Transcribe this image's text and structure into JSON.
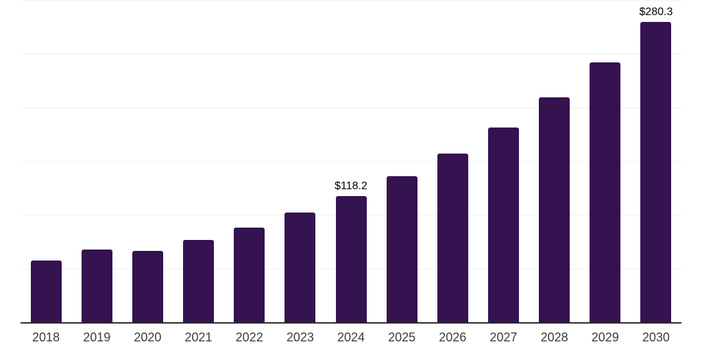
{
  "chart_data": {
    "type": "bar",
    "title": "",
    "xlabel": "",
    "ylabel": "",
    "categories": [
      "2018",
      "2019",
      "2020",
      "2021",
      "2022",
      "2023",
      "2024",
      "2025",
      "2026",
      "2027",
      "2028",
      "2029",
      "2030"
    ],
    "values": [
      58.4,
      68.6,
      66.9,
      77.3,
      88.6,
      102.8,
      118.2,
      136.5,
      157.6,
      182.0,
      210.2,
      242.7,
      280.3
    ],
    "data_labels": [
      {
        "category": "2024",
        "text": "$118.2"
      },
      {
        "category": "2030",
        "text": "$280.3"
      }
    ],
    "ylim": [
      0,
      300
    ],
    "gridline_step": 50,
    "grid": "horizontal-only",
    "y_tick_labels_visible": false,
    "legend": "none",
    "colors": {
      "bar": "#351250",
      "axis_line": "#2b2b2b",
      "gridline": "#f0f0f0",
      "tick_label": "#3d3d3d",
      "data_label": "#000000",
      "background": "#ffffff"
    }
  }
}
